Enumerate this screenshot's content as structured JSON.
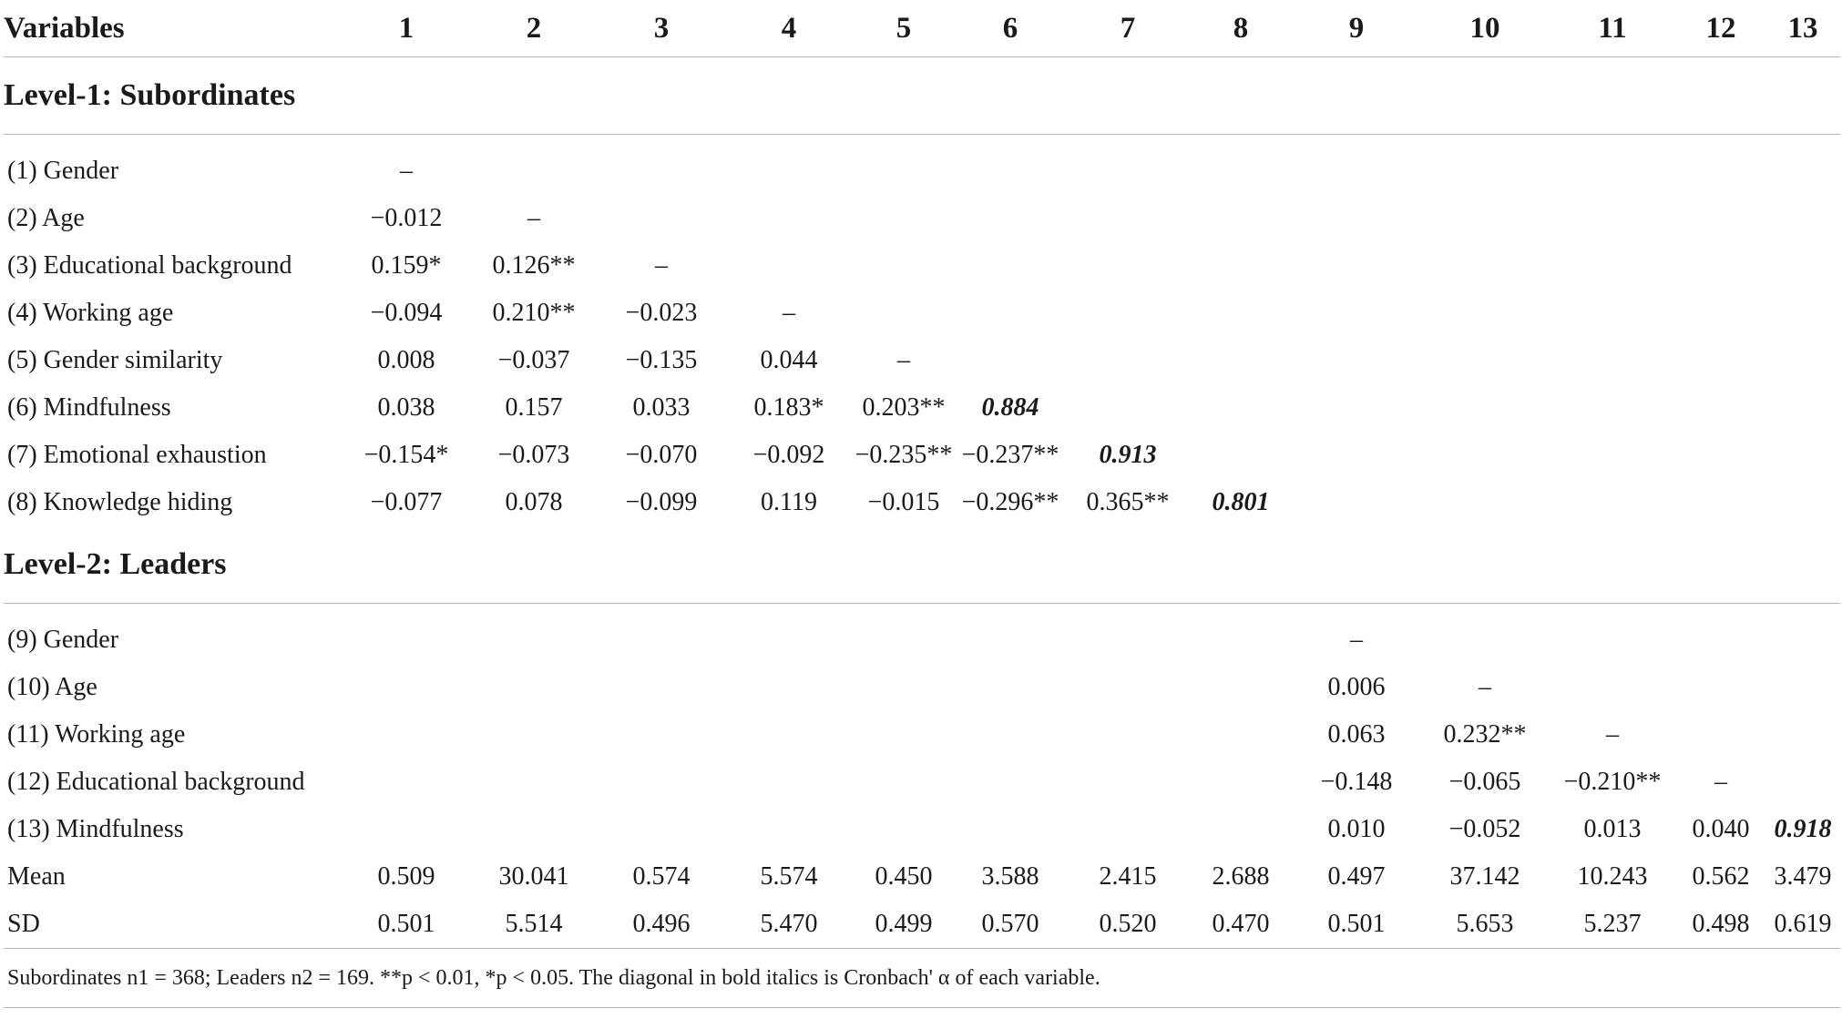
{
  "header": {
    "variables_label": "Variables",
    "cols": [
      "1",
      "2",
      "3",
      "4",
      "5",
      "6",
      "7",
      "8",
      "9",
      "10",
      "11",
      "12",
      "13"
    ]
  },
  "level1": {
    "title": "Level-1: Subordinates",
    "rows": [
      {
        "label": "(1) Gender",
        "cells": [
          "–",
          "",
          "",
          "",
          "",
          "",
          "",
          "",
          "",
          "",
          "",
          "",
          ""
        ]
      },
      {
        "label": "(2) Age",
        "cells": [
          "−0.012",
          "–",
          "",
          "",
          "",
          "",
          "",
          "",
          "",
          "",
          "",
          "",
          ""
        ]
      },
      {
        "label": "(3) Educational background",
        "cells": [
          "0.159*",
          "0.126**",
          "–",
          "",
          "",
          "",
          "",
          "",
          "",
          "",
          "",
          "",
          ""
        ]
      },
      {
        "label": "(4) Working age",
        "cells": [
          "−0.094",
          "0.210**",
          "−0.023",
          "–",
          "",
          "",
          "",
          "",
          "",
          "",
          "",
          "",
          ""
        ]
      },
      {
        "label": "(5) Gender similarity",
        "cells": [
          "0.008",
          "−0.037",
          "−0.135",
          "0.044",
          "–",
          "",
          "",
          "",
          "",
          "",
          "",
          "",
          ""
        ]
      },
      {
        "label": "(6) Mindfulness",
        "cells": [
          "0.038",
          "0.157",
          "0.033",
          "0.183*",
          "0.203**",
          "0.884",
          "",
          "",
          "",
          "",
          "",
          "",
          ""
        ]
      },
      {
        "label": "(7) Emotional exhaustion",
        "cells": [
          "−0.154*",
          "−0.073",
          "−0.070",
          "−0.092",
          "−0.235**",
          "−0.237**",
          "0.913",
          "",
          "",
          "",
          "",
          "",
          ""
        ]
      },
      {
        "label": "(8) Knowledge hiding",
        "cells": [
          "−0.077",
          "0.078",
          "−0.099",
          "0.119",
          "−0.015",
          "−0.296**",
          "0.365**",
          "0.801",
          "",
          "",
          "",
          "",
          ""
        ]
      }
    ]
  },
  "level2": {
    "title": "Level-2: Leaders",
    "rows": [
      {
        "label": "(9) Gender",
        "cells": [
          "",
          "",
          "",
          "",
          "",
          "",
          "",
          "",
          "–",
          "",
          "",
          "",
          ""
        ]
      },
      {
        "label": "(10) Age",
        "cells": [
          "",
          "",
          "",
          "",
          "",
          "",
          "",
          "",
          "0.006",
          "–",
          "",
          "",
          ""
        ]
      },
      {
        "label": "(11) Working age",
        "cells": [
          "",
          "",
          "",
          "",
          "",
          "",
          "",
          "",
          "0.063",
          "0.232**",
          "–",
          "",
          ""
        ]
      },
      {
        "label": "(12) Educational background",
        "cells": [
          "",
          "",
          "",
          "",
          "",
          "",
          "",
          "",
          "−0.148",
          "−0.065",
          "−0.210**",
          "–",
          ""
        ]
      },
      {
        "label": "(13) Mindfulness",
        "cells": [
          "",
          "",
          "",
          "",
          "",
          "",
          "",
          "",
          "0.010",
          "−0.052",
          "0.013",
          "0.040",
          "0.918"
        ]
      }
    ]
  },
  "summary": [
    {
      "label": "Mean",
      "cells": [
        "0.509",
        "30.041",
        "0.574",
        "5.574",
        "0.450",
        "3.588",
        "2.415",
        "2.688",
        "0.497",
        "37.142",
        "10.243",
        "0.562",
        "3.479"
      ]
    },
    {
      "label": "SD",
      "cells": [
        "0.501",
        "5.514",
        "0.496",
        "5.470",
        "0.499",
        "0.570",
        "0.520",
        "0.470",
        "0.501",
        "5.653",
        "5.237",
        "0.498",
        "0.619"
      ]
    }
  ],
  "footnote": "Subordinates n1 = 368; Leaders n2 = 169. **p < 0.01, *p < 0.05. The diagonal in bold italics is Cronbach' α of each variable."
}
